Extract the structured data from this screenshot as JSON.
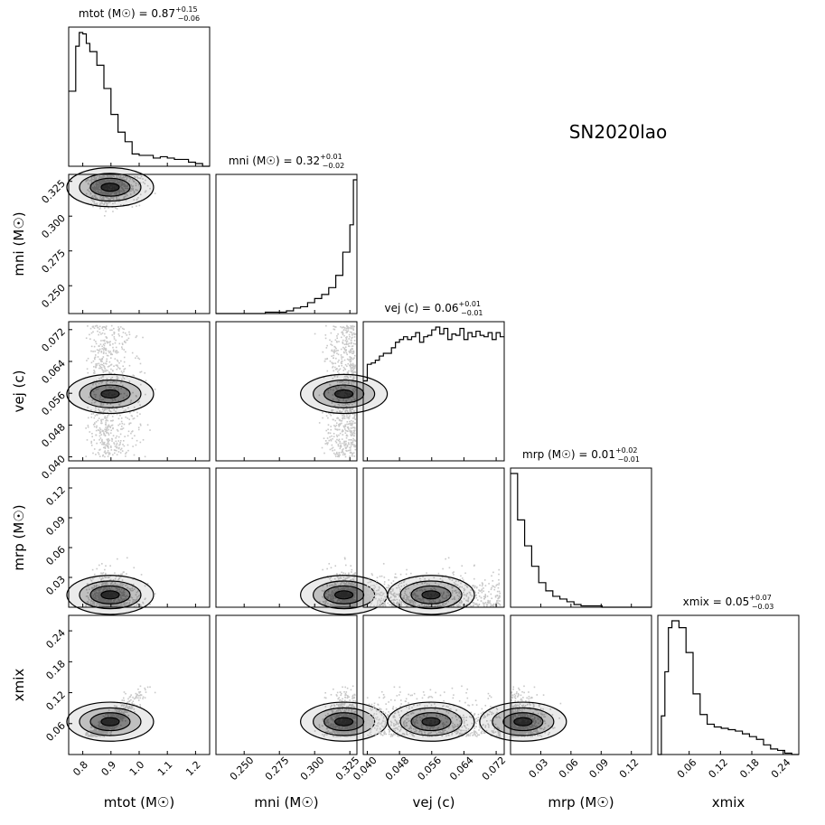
{
  "title": "SN2020lao",
  "parameters": [
    {
      "key": "mtot",
      "label": "mtot (M☉)",
      "range": [
        0.75,
        1.25
      ],
      "ticks": [
        "0.8",
        "0.9",
        "1.0",
        "1.1",
        "1.2"
      ],
      "tick_values": [
        0.8,
        0.9,
        1.0,
        1.1,
        1.2
      ],
      "summary": {
        "prefix": "mtot (M☉) = ",
        "median": "0.87",
        "plus": "+0.15",
        "minus": "−0.06"
      }
    },
    {
      "key": "mni",
      "label": "mni (M☉)",
      "range": [
        0.23,
        0.33
      ],
      "ticks": [
        "0.250",
        "0.275",
        "0.300",
        "0.325"
      ],
      "tick_values": [
        0.25,
        0.275,
        0.3,
        0.325
      ],
      "summary": {
        "prefix": "mni (M☉) = ",
        "median": "0.32",
        "plus": "+0.01",
        "minus": "−0.02"
      }
    },
    {
      "key": "vej",
      "label": "vej (c)",
      "range": [
        0.039,
        0.074
      ],
      "ticks": [
        "0.040",
        "0.048",
        "0.056",
        "0.064",
        "0.072"
      ],
      "tick_values": [
        0.04,
        0.048,
        0.056,
        0.064,
        0.072
      ],
      "summary": {
        "prefix": "vej (c) = ",
        "median": "0.06",
        "plus": "+0.01",
        "minus": "−0.01"
      }
    },
    {
      "key": "mrp",
      "label": "mrp (M☉)",
      "range": [
        0.0,
        0.14
      ],
      "ticks": [
        "0.03",
        "0.06",
        "0.09",
        "0.12"
      ],
      "tick_values": [
        0.03,
        0.06,
        0.09,
        0.12
      ],
      "summary": {
        "prefix": "mrp (M☉) = ",
        "median": "0.01",
        "plus": "+0.02",
        "minus": "−0.01"
      }
    },
    {
      "key": "xmix",
      "label": "xmix",
      "range": [
        0.0,
        0.27
      ],
      "ticks": [
        "0.06",
        "0.12",
        "0.18",
        "0.24"
      ],
      "tick_values": [
        0.06,
        0.12,
        0.18,
        0.24
      ],
      "summary": {
        "prefix": "xmix = ",
        "median": "0.05",
        "plus": "+0.07",
        "minus": "−0.03"
      }
    }
  ],
  "chart_data": {
    "type": "corner",
    "title": "SN2020lao",
    "histograms": {
      "mtot": {
        "bins": [
          0.75,
          0.7625,
          0.775,
          0.7875,
          0.8,
          0.8125,
          0.825,
          0.8375,
          0.85,
          0.8625,
          0.875,
          0.8875,
          0.9,
          0.9125,
          0.925,
          0.9375,
          0.95,
          0.9625,
          0.975,
          0.9875,
          1.0,
          1.0125,
          1.025,
          1.0375,
          1.05,
          1.0625,
          1.075,
          1.0875,
          1.1,
          1.1125,
          1.125,
          1.1375,
          1.15,
          1.1625,
          1.175,
          1.1875,
          1.2,
          1.2125,
          1.225,
          1.2375,
          1.25
        ],
        "counts": [
          55,
          55,
          88,
          98,
          97,
          90,
          84,
          84,
          74,
          74,
          57,
          57,
          38,
          38,
          25,
          25,
          18,
          18,
          9,
          9,
          8,
          8,
          8,
          8,
          6,
          6,
          7,
          7,
          6,
          6,
          5,
          5,
          5,
          5,
          3,
          3,
          2,
          2,
          0,
          0
        ]
      },
      "mni": {
        "bins": [
          0.23,
          0.2325,
          0.235,
          0.2375,
          0.24,
          0.2425,
          0.245,
          0.2475,
          0.25,
          0.2525,
          0.255,
          0.2575,
          0.26,
          0.2625,
          0.265,
          0.2675,
          0.27,
          0.2725,
          0.275,
          0.2775,
          0.28,
          0.2825,
          0.285,
          0.2875,
          0.29,
          0.2925,
          0.295,
          0.2975,
          0.3,
          0.3025,
          0.305,
          0.3075,
          0.31,
          0.3125,
          0.315,
          0.3175,
          0.32,
          0.3225,
          0.325,
          0.3275,
          0.33
        ],
        "counts": [
          0,
          0,
          0,
          0,
          0,
          0,
          0,
          0,
          0,
          0,
          0,
          0,
          0,
          0,
          1,
          1,
          1,
          1,
          1,
          1,
          2,
          2,
          4,
          4,
          5,
          5,
          8,
          8,
          11,
          11,
          14,
          14,
          19,
          19,
          28,
          28,
          45,
          45,
          65,
          98
        ]
      },
      "vej": {
        "bins": [
          0.039,
          0.04,
          0.041,
          0.042,
          0.043,
          0.044,
          0.045,
          0.046,
          0.047,
          0.048,
          0.049,
          0.05,
          0.051,
          0.052,
          0.053,
          0.054,
          0.055,
          0.056,
          0.057,
          0.058,
          0.059,
          0.06,
          0.061,
          0.062,
          0.063,
          0.064,
          0.065,
          0.066,
          0.067,
          0.068,
          0.069,
          0.07,
          0.071,
          0.072,
          0.073,
          0.074
        ],
        "counts": [
          58,
          70,
          71,
          73,
          76,
          78,
          78,
          82,
          86,
          88,
          90,
          88,
          90,
          93,
          86,
          90,
          91,
          95,
          97,
          92,
          96,
          88,
          92,
          91,
          96,
          88,
          93,
          90,
          94,
          91,
          90,
          93,
          88,
          93,
          90
        ]
      },
      "mrp": {
        "bins": [
          0.0,
          0.0035,
          0.007,
          0.0105,
          0.014,
          0.0175,
          0.021,
          0.0245,
          0.028,
          0.0315,
          0.035,
          0.0385,
          0.042,
          0.0455,
          0.049,
          0.0525,
          0.056,
          0.0595,
          0.063,
          0.0665,
          0.07,
          0.0735,
          0.077,
          0.0805,
          0.084,
          0.0875,
          0.091,
          0.0945,
          0.098,
          0.1015,
          0.105,
          0.1085,
          0.112,
          0.1155,
          0.119,
          0.1225,
          0.126,
          0.1295,
          0.133,
          0.1365,
          0.14
        ],
        "counts": [
          98,
          98,
          64,
          64,
          45,
          45,
          30,
          30,
          18,
          18,
          12,
          12,
          8,
          8,
          6,
          6,
          4,
          4,
          2,
          2,
          1,
          1,
          1,
          1,
          1,
          1,
          0,
          0,
          0,
          0,
          0,
          0,
          0,
          0,
          0,
          0,
          0,
          0,
          0,
          0
        ]
      },
      "xmix": {
        "bins": [
          0.0,
          0.00675,
          0.0135,
          0.02025,
          0.027,
          0.03375,
          0.0405,
          0.04725,
          0.054,
          0.06075,
          0.0675,
          0.07425,
          0.081,
          0.08775,
          0.0945,
          0.10125,
          0.108,
          0.11475,
          0.1215,
          0.12825,
          0.135,
          0.14175,
          0.1485,
          0.15525,
          0.162,
          0.16875,
          0.1755,
          0.18225,
          0.189,
          0.19575,
          0.2025,
          0.20925,
          0.216,
          0.22275,
          0.2295,
          0.23625,
          0.243,
          0.24975,
          0.2565,
          0.26325,
          0.27
        ],
        "counts": [
          0,
          28,
          60,
          92,
          97,
          97,
          92,
          92,
          74,
          74,
          44,
          44,
          29,
          29,
          22,
          22,
          20,
          20,
          19,
          19,
          18,
          18,
          17,
          17,
          15,
          15,
          13,
          13,
          11,
          11,
          7,
          7,
          4,
          4,
          3,
          3,
          1,
          1,
          0,
          0
        ]
      }
    },
    "levels": [
      0.118,
      0.393,
      0.675,
      0.865
    ],
    "scatter_color": "#c8c8c8",
    "contour_color": "#000000"
  }
}
